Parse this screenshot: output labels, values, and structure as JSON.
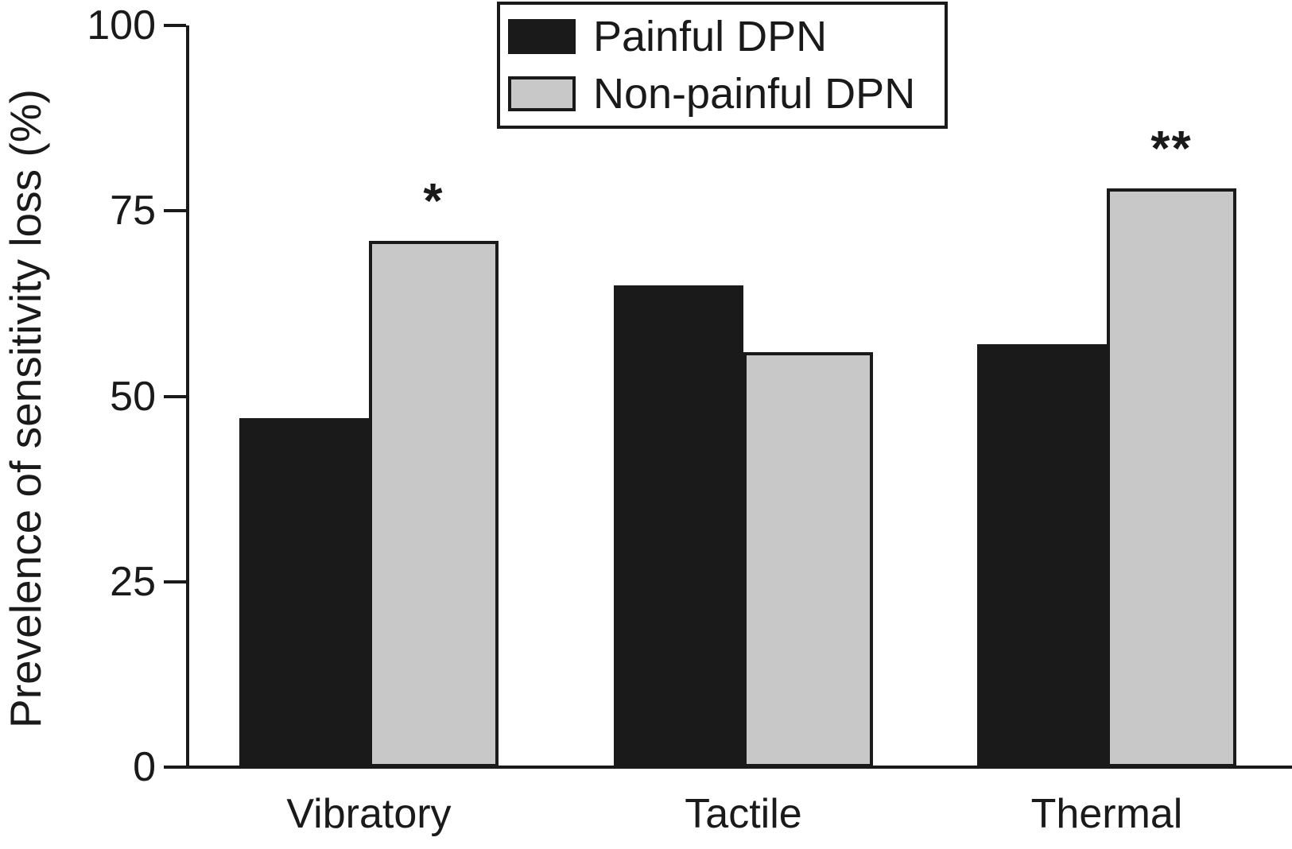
{
  "chart_data": {
    "type": "bar",
    "title": "",
    "xlabel": "",
    "ylabel": "Prevelence of sensitivity loss (%)",
    "ylim": [
      0,
      100
    ],
    "yticks": [
      0,
      25,
      50,
      75,
      100
    ],
    "categories": [
      "Vibratory",
      "Tactile",
      "Thermal"
    ],
    "series": [
      {
        "name": "Painful DPN",
        "color": "#1a1a1a",
        "border": "#1a1a1a",
        "values": [
          47,
          65,
          57
        ]
      },
      {
        "name": "Non-painful DPN",
        "color": "#c8c8c8",
        "border": "#1a1a1a",
        "values": [
          71,
          56,
          78
        ]
      }
    ],
    "annotations": [
      {
        "category": "Vibratory",
        "series": "Non-painful DPN",
        "text": "*"
      },
      {
        "category": "Thermal",
        "series": "Non-painful DPN",
        "text": "**"
      }
    ],
    "legend_position": "top-center",
    "grid": false,
    "axis_color": "#1a1a1a",
    "background": "#ffffff"
  }
}
